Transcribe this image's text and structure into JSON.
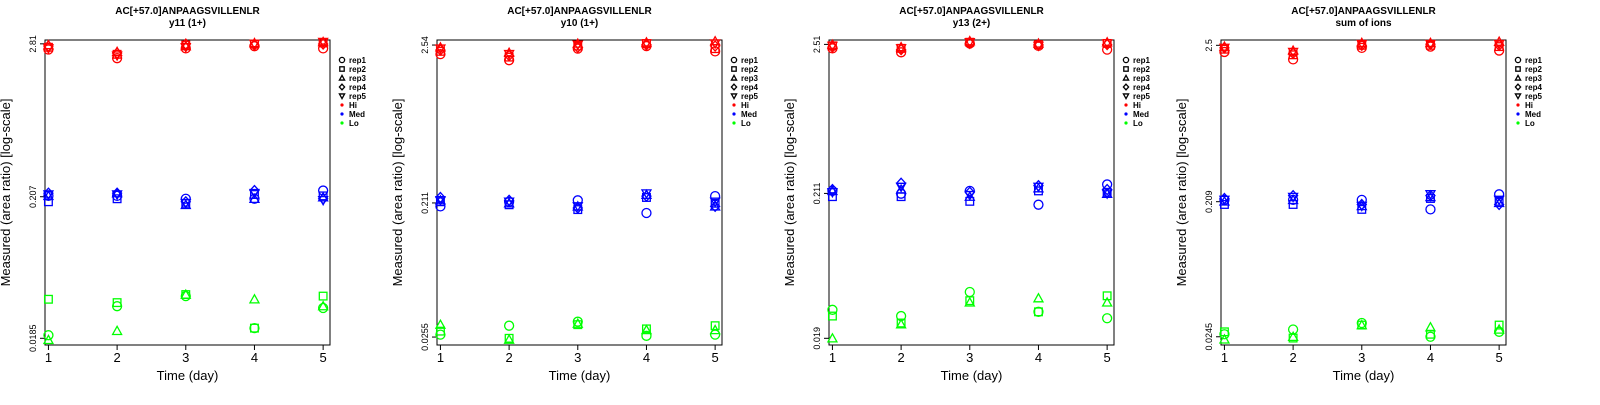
{
  "colors": {
    "Hi": "#ff0000",
    "Med": "#0000ff",
    "Lo": "#00ff00"
  },
  "legend": [
    {
      "label": "rep1",
      "shape": "circle",
      "color": "#000000"
    },
    {
      "label": "rep2",
      "shape": "square",
      "color": "#000000"
    },
    {
      "label": "rep3",
      "shape": "triangle-up",
      "color": "#000000"
    },
    {
      "label": "rep4",
      "shape": "diamond",
      "color": "#000000"
    },
    {
      "label": "rep5",
      "shape": "triangle-down",
      "color": "#000000"
    },
    {
      "label": "Hi",
      "shape": "dot",
      "color": "#ff0000"
    },
    {
      "label": "Med",
      "shape": "dot",
      "color": "#0000ff"
    },
    {
      "label": "Lo",
      "shape": "dot",
      "color": "#00ff00"
    }
  ],
  "chart_data": [
    {
      "type": "scatter",
      "title": "AC[+57.0]ANPAAGSVILLENLR",
      "subtitle": "y11 (1+)",
      "xlabel": "Time (day)",
      "ylabel": "Measured (area ratio) [log-scale]",
      "ylog": true,
      "x": [
        1,
        2,
        3,
        4,
        5
      ],
      "yticks": [
        0.0185,
        0.207,
        2.81
      ],
      "ytick_labels": [
        "0.0185",
        "0.207",
        "2.81"
      ],
      "ylim": [
        0.0165,
        3.0
      ],
      "series": [
        {
          "name": "Hi",
          "group": "Hi",
          "points": {
            "rep1": [
              2.55,
              2.2,
              2.6,
              2.7,
              2.6
            ],
            "rep2": [
              2.65,
              2.35,
              2.75,
              2.8,
              2.85
            ],
            "rep3": [
              2.75,
              2.45,
              2.7,
              2.85,
              2.9
            ],
            "rep4": [
              2.7,
              2.4,
              2.8,
              2.75,
              2.8
            ],
            "rep5": [
              2.6,
              2.3,
              2.65,
              2.8,
              2.9
            ]
          }
        },
        {
          "name": "Med",
          "group": "Med",
          "points": {
            "rep1": [
              0.21,
              0.21,
              0.2,
              0.2,
              0.23
            ],
            "rep2": [
              0.19,
              0.2,
              0.185,
              0.215,
              0.21
            ],
            "rep3": [
              0.21,
              0.22,
              0.18,
              0.2,
              0.205
            ],
            "rep4": [
              0.22,
              0.22,
              0.19,
              0.23,
              0.2
            ],
            "rep5": [
              0.215,
              0.215,
              0.185,
              0.22,
              0.195
            ]
          }
        },
        {
          "name": "Lo",
          "group": "Lo",
          "points": {
            "rep1": [
              0.0195,
              0.032,
              0.038,
              0.022,
              0.031
            ],
            "rep2": [
              0.036,
              0.034,
              0.039,
              0.022,
              0.038
            ],
            "rep3": [
              0.018,
              0.021,
              0.039,
              0.036,
              0.032
            ]
          }
        }
      ]
    },
    {
      "type": "scatter",
      "title": "AC[+57.0]ANPAAGSVILLENLR",
      "subtitle": "y10 (1+)",
      "xlabel": "Time (day)",
      "ylabel": "Measured (area ratio) [log-scale]",
      "ylog": true,
      "x": [
        1,
        2,
        3,
        4,
        5
      ],
      "yticks": [
        0.0255,
        0.211,
        2.54
      ],
      "ytick_labels": [
        "0.0255",
        "0.211",
        "2.54"
      ],
      "ylim": [
        0.0225,
        2.75
      ],
      "series": [
        {
          "name": "Hi",
          "group": "Hi",
          "points": {
            "rep1": [
              2.2,
              2.0,
              2.4,
              2.5,
              2.3
            ],
            "rep2": [
              2.3,
              2.1,
              2.5,
              2.6,
              2.4
            ],
            "rep3": [
              2.45,
              2.25,
              2.6,
              2.65,
              2.7
            ],
            "rep4": [
              2.35,
              2.15,
              2.45,
              2.55,
              2.5
            ],
            "rep5": [
              2.4,
              2.2,
              2.55,
              2.6,
              2.6
            ]
          }
        },
        {
          "name": "Med",
          "group": "Med",
          "points": {
            "rep1": [
              0.2,
              0.215,
              0.22,
              0.18,
              0.235
            ],
            "rep2": [
              0.215,
              0.205,
              0.19,
              0.23,
              0.21
            ],
            "rep3": [
              0.22,
              0.21,
              0.2,
              0.24,
              0.2
            ],
            "rep4": [
              0.23,
              0.22,
              0.195,
              0.235,
              0.2
            ],
            "rep5": [
              0.22,
              0.215,
              0.2,
              0.245,
              0.215
            ]
          }
        },
        {
          "name": "Lo",
          "group": "Lo",
          "points": {
            "rep1": [
              0.0265,
              0.0305,
              0.0325,
              0.026,
              0.0265
            ],
            "rep2": [
              0.028,
              0.025,
              0.031,
              0.029,
              0.0305
            ],
            "rep3": [
              0.031,
              0.0245,
              0.0315,
              0.0285,
              0.0285
            ]
          }
        }
      ]
    },
    {
      "type": "scatter",
      "title": "AC[+57.0]ANPAAGSVILLENLR",
      "subtitle": "y13 (2+)",
      "xlabel": "Time (day)",
      "ylabel": "Measured (area ratio) [log-scale]",
      "ylog": true,
      "x": [
        1,
        2,
        3,
        4,
        5
      ],
      "yticks": [
        0.019,
        0.211,
        2.51
      ],
      "ytick_labels": [
        "0.019",
        "0.211",
        "2.51"
      ],
      "ylim": [
        0.017,
        2.7
      ],
      "series": [
        {
          "name": "Hi",
          "group": "Hi",
          "points": {
            "rep1": [
              2.35,
              2.2,
              2.55,
              2.45,
              2.3
            ],
            "rep2": [
              2.45,
              2.35,
              2.6,
              2.5,
              2.55
            ],
            "rep3": [
              2.5,
              2.4,
              2.65,
              2.55,
              2.6
            ],
            "rep4": [
              2.4,
              2.3,
              2.55,
              2.5,
              2.5
            ],
            "rep5": [
              2.45,
              2.35,
              2.6,
              2.45,
              2.55
            ]
          }
        },
        {
          "name": "Med",
          "group": "Med",
          "points": {
            "rep1": [
              0.22,
              0.21,
              0.22,
              0.175,
              0.245
            ],
            "rep2": [
              0.2,
              0.2,
              0.185,
              0.22,
              0.215
            ],
            "rep3": [
              0.22,
              0.225,
              0.2,
              0.23,
              0.21
            ],
            "rep4": [
              0.225,
              0.25,
              0.215,
              0.24,
              0.225
            ],
            "rep5": [
              0.215,
              0.235,
              0.205,
              0.235,
              0.21
            ]
          }
        },
        {
          "name": "Lo",
          "group": "Lo",
          "points": {
            "rep1": [
              0.0305,
              0.0275,
              0.041,
              0.0295,
              0.0265
            ],
            "rep2": [
              0.0275,
              0.0245,
              0.0355,
              0.0295,
              0.0385
            ],
            "rep3": [
              0.019,
              0.024,
              0.0345,
              0.037,
              0.0345
            ]
          }
        }
      ]
    },
    {
      "type": "scatter",
      "title": "AC[+57.0]ANPAAGSVILLENLR",
      "subtitle": "sum of ions",
      "xlabel": "Time (day)",
      "ylabel": "Measured (area ratio) [log-scale]",
      "ylog": true,
      "x": [
        1,
        2,
        3,
        4,
        5
      ],
      "yticks": [
        0.0245,
        0.209,
        2.5
      ],
      "ytick_labels": [
        "0.0245",
        "0.209",
        "2.5"
      ],
      "ylim": [
        0.0215,
        2.72
      ],
      "series": [
        {
          "name": "Hi",
          "group": "Hi",
          "points": {
            "rep1": [
              2.25,
              2.0,
              2.4,
              2.45,
              2.3
            ],
            "rep2": [
              2.35,
              2.15,
              2.5,
              2.5,
              2.45
            ],
            "rep3": [
              2.45,
              2.3,
              2.6,
              2.6,
              2.65
            ],
            "rep4": [
              2.4,
              2.2,
              2.5,
              2.55,
              2.5
            ],
            "rep5": [
              2.4,
              2.25,
              2.55,
              2.55,
              2.55
            ]
          }
        },
        {
          "name": "Med",
          "group": "Med",
          "points": {
            "rep1": [
              0.215,
              0.215,
              0.215,
              0.185,
              0.235
            ],
            "rep2": [
              0.2,
              0.2,
              0.185,
              0.22,
              0.21
            ],
            "rep3": [
              0.21,
              0.215,
              0.195,
              0.225,
              0.205
            ],
            "rep4": [
              0.22,
              0.23,
              0.2,
              0.23,
              0.2
            ],
            "rep5": [
              0.215,
              0.225,
              0.195,
              0.235,
              0.215
            ]
          }
        },
        {
          "name": "Lo",
          "group": "Lo",
          "points": {
            "rep1": [
              0.0255,
              0.0275,
              0.0305,
              0.0245,
              0.0265
            ],
            "rep2": [
              0.0265,
              0.024,
              0.0295,
              0.0255,
              0.0295
            ],
            "rep3": [
              0.0235,
              0.0245,
              0.0295,
              0.0285,
              0.0275
            ]
          }
        }
      ]
    }
  ]
}
